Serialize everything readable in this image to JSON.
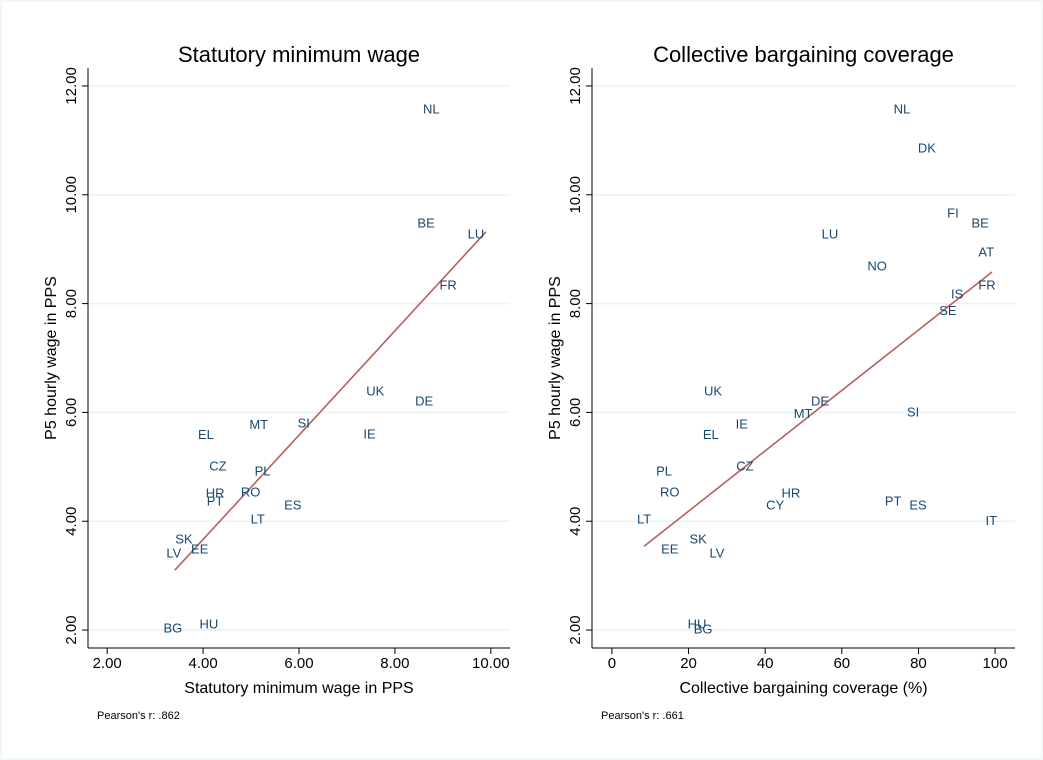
{
  "chart_data": [
    {
      "type": "scatter",
      "title": "Statutory minimum wage",
      "x_label": "Statutory minimum wage in PPS",
      "y_label": "P5 hourly wage in PPS",
      "note": "Pearson's r: .862",
      "labels": [
        "NL",
        "BE",
        "LU",
        "FR",
        "UK",
        "DE",
        "IE",
        "MT",
        "SI",
        "EL",
        "CZ",
        "PL",
        "HR",
        "RO",
        "PT",
        "ES",
        "LT",
        "SK",
        "EE",
        "LV",
        "BG",
        "HU"
      ],
      "x": [
        8.76,
        8.65,
        9.69,
        9.11,
        7.59,
        8.61,
        7.47,
        5.16,
        6.1,
        4.06,
        4.31,
        5.24,
        4.25,
        4.99,
        4.25,
        5.87,
        5.14,
        3.6,
        3.93,
        3.39,
        3.37,
        4.12
      ],
      "y": [
        11.56,
        9.46,
        9.26,
        8.32,
        6.37,
        6.19,
        5.58,
        5.76,
        5.79,
        5.57,
        5.0,
        4.9,
        4.5,
        4.52,
        4.35,
        4.28,
        4.02,
        3.65,
        3.47,
        3.4,
        2.02,
        2.09
      ],
      "color": "#1a476f",
      "fit_line": {
        "x": [
          3.41,
          9.9
        ],
        "y": [
          3.1,
          9.32
        ],
        "color": "#b5605a"
      },
      "xlim": [
        1.6,
        10.4
      ],
      "ylim": [
        1.67,
        12.33
      ],
      "xticks": [
        {
          "value": 2,
          "label": "2.00"
        },
        {
          "value": 4,
          "label": "4.00"
        },
        {
          "value": 6,
          "label": "6.00"
        },
        {
          "value": 8,
          "label": "8.00"
        },
        {
          "value": 10,
          "label": "10.00"
        }
      ],
      "yticks": [
        {
          "value": 2,
          "label": "2.00"
        },
        {
          "value": 4,
          "label": "4.00"
        },
        {
          "value": 6,
          "label": "6.00"
        },
        {
          "value": 8,
          "label": "8.00"
        },
        {
          "value": 10,
          "label": "10.00"
        },
        {
          "value": 12,
          "label": "12.00"
        }
      ],
      "grid": true
    },
    {
      "type": "scatter",
      "title": "Collective bargaining coverage",
      "x_label": "Collective bargaining coverage (%)",
      "y_label": "P5 hourly wage in PPS",
      "note": "Pearson's r: .661",
      "labels": [
        "NL",
        "DK",
        "FI",
        "BE",
        "LU",
        "AT",
        "NO",
        "IS",
        "FR",
        "SE",
        "UK",
        "DE",
        "MT",
        "SI",
        "IE",
        "EL",
        "CZ",
        "PL",
        "RO",
        "HR",
        "PT",
        "ES",
        "CY",
        "LT",
        "IT",
        "SK",
        "EE",
        "LV",
        "HU",
        "BG"
      ],
      "x": [
        75.7,
        82.2,
        89.0,
        96.1,
        56.9,
        97.7,
        69.2,
        90.1,
        97.9,
        87.7,
        26.4,
        54.3,
        49.9,
        78.6,
        33.9,
        25.8,
        34.7,
        13.6,
        15.1,
        46.7,
        73.4,
        79.9,
        42.6,
        8.4,
        99.0,
        22.5,
        15.1,
        27.4,
        22.2,
        23.8
      ],
      "y": [
        11.56,
        10.84,
        9.65,
        9.46,
        9.26,
        8.93,
        8.67,
        8.16,
        8.32,
        7.85,
        6.37,
        6.19,
        5.96,
        5.99,
        5.77,
        5.57,
        5.0,
        4.9,
        4.52,
        4.5,
        4.35,
        4.28,
        4.28,
        4.02,
        3.99,
        3.65,
        3.47,
        3.4,
        2.09,
        2.0
      ],
      "color": "#1a476f",
      "fit_line": {
        "x": [
          8.4,
          99.2
        ],
        "y": [
          3.54,
          8.58
        ],
        "color": "#b5605a"
      },
      "xlim": [
        -5.2,
        105.2
      ],
      "ylim": [
        1.67,
        12.33
      ],
      "xticks": [
        0,
        20,
        40,
        60,
        80,
        100
      ],
      "yticks": [
        {
          "value": 2,
          "label": "2.00"
        },
        {
          "value": 4,
          "label": "4.00"
        },
        {
          "value": 6,
          "label": "6.00"
        },
        {
          "value": 8,
          "label": "8.00"
        },
        {
          "value": 10,
          "label": "10.00"
        },
        {
          "value": 12,
          "label": "12.00"
        }
      ],
      "grid": true
    }
  ]
}
